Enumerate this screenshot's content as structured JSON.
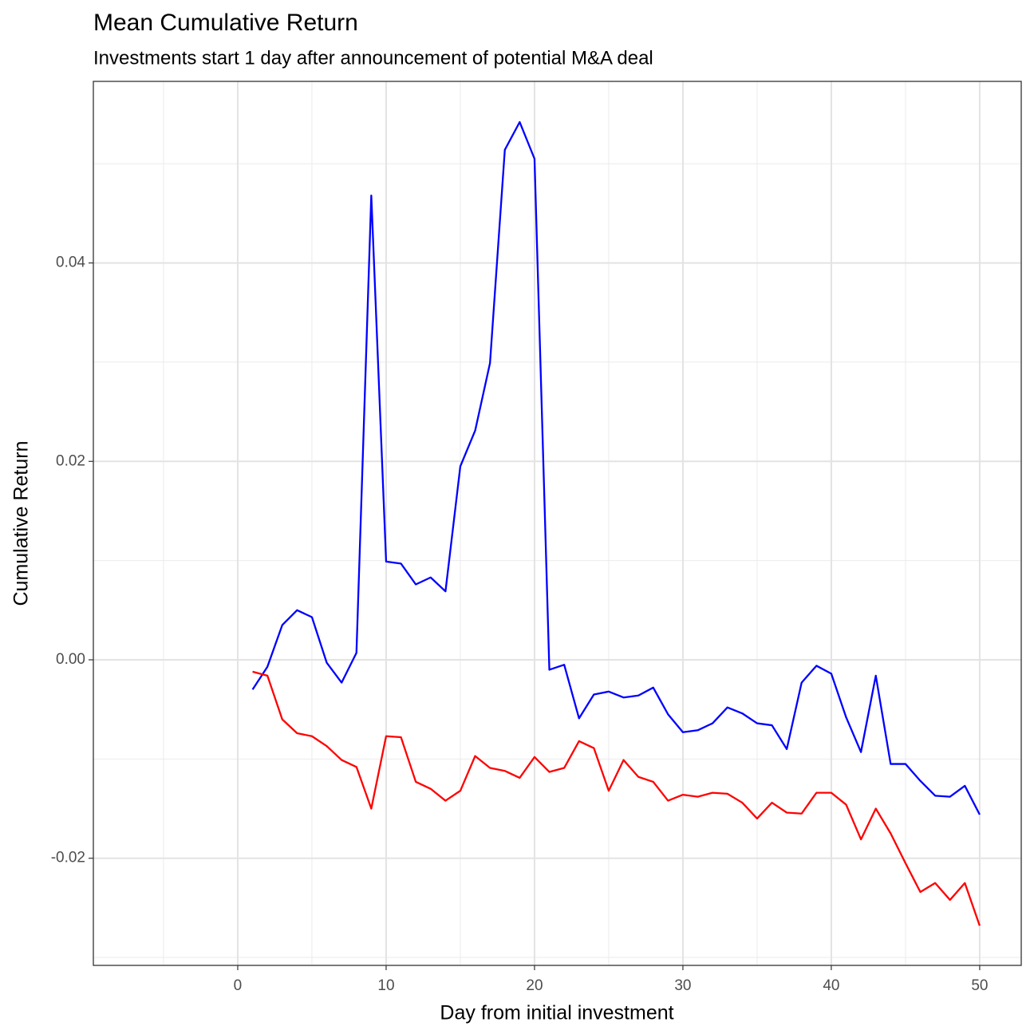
{
  "chart_data": {
    "type": "line",
    "title": "Mean Cumulative Return",
    "subtitle": "Investments start 1 day after announcement of potential M&A deal",
    "x_label": "Day from initial investment",
    "y_label": "Cumulative Return",
    "x": [
      1,
      2,
      3,
      4,
      5,
      6,
      7,
      8,
      9,
      10,
      11,
      12,
      13,
      14,
      15,
      16,
      17,
      18,
      19,
      20,
      21,
      22,
      23,
      24,
      25,
      26,
      27,
      28,
      29,
      30,
      31,
      32,
      33,
      34,
      35,
      36,
      37,
      38,
      39,
      40,
      41,
      42,
      43,
      44,
      45,
      46,
      47,
      48,
      49,
      50
    ],
    "series": [
      {
        "color": "#0000ff",
        "values": [
          -0.003,
          -0.0007,
          0.0035,
          0.005,
          0.0043,
          -0.0003,
          -0.0023,
          0.0007,
          0.0468,
          0.0099,
          0.0097,
          0.0076,
          0.0083,
          0.0069,
          0.0195,
          0.0231,
          0.0299,
          0.0514,
          0.0542,
          0.0505,
          -0.001,
          -0.0005,
          -0.0059,
          -0.0035,
          -0.0032,
          -0.0038,
          -0.0036,
          -0.0028,
          -0.0055,
          -0.0073,
          -0.0071,
          -0.0064,
          -0.0048,
          -0.0054,
          -0.0064,
          -0.0066,
          -0.009,
          -0.0023,
          -0.0006,
          -0.0014,
          -0.0058,
          -0.0093,
          -0.0016,
          -0.0105,
          -0.0105,
          -0.0122,
          -0.0137,
          -0.0138,
          -0.0127,
          -0.0156
        ]
      },
      {
        "color": "#ff0000",
        "values": [
          -0.0012,
          -0.0016,
          -0.006,
          -0.0074,
          -0.0077,
          -0.0087,
          -0.0101,
          -0.0108,
          -0.015,
          -0.0077,
          -0.0078,
          -0.0123,
          -0.013,
          -0.0142,
          -0.0132,
          -0.0097,
          -0.0109,
          -0.0112,
          -0.0119,
          -0.0098,
          -0.0113,
          -0.0109,
          -0.0082,
          -0.0089,
          -0.0132,
          -0.0101,
          -0.0118,
          -0.0123,
          -0.0142,
          -0.0136,
          -0.0138,
          -0.0134,
          -0.0135,
          -0.0144,
          -0.016,
          -0.0144,
          -0.0154,
          -0.0155,
          -0.0134,
          -0.0134,
          -0.0146,
          -0.0181,
          -0.015,
          -0.0175,
          -0.0205,
          -0.0234,
          -0.0225,
          -0.0242,
          -0.0225,
          -0.0268
        ]
      }
    ],
    "xlim": [
      -9.73,
      52.8
    ],
    "ylim": [
      -0.0308,
      0.0583
    ],
    "xticks": [
      0,
      10,
      20,
      30,
      40,
      50
    ],
    "yticks": [
      -0.02,
      {
        "value": 0,
        "label": "0.00"
      },
      0.02,
      0.04
    ],
    "grid": true
  }
}
